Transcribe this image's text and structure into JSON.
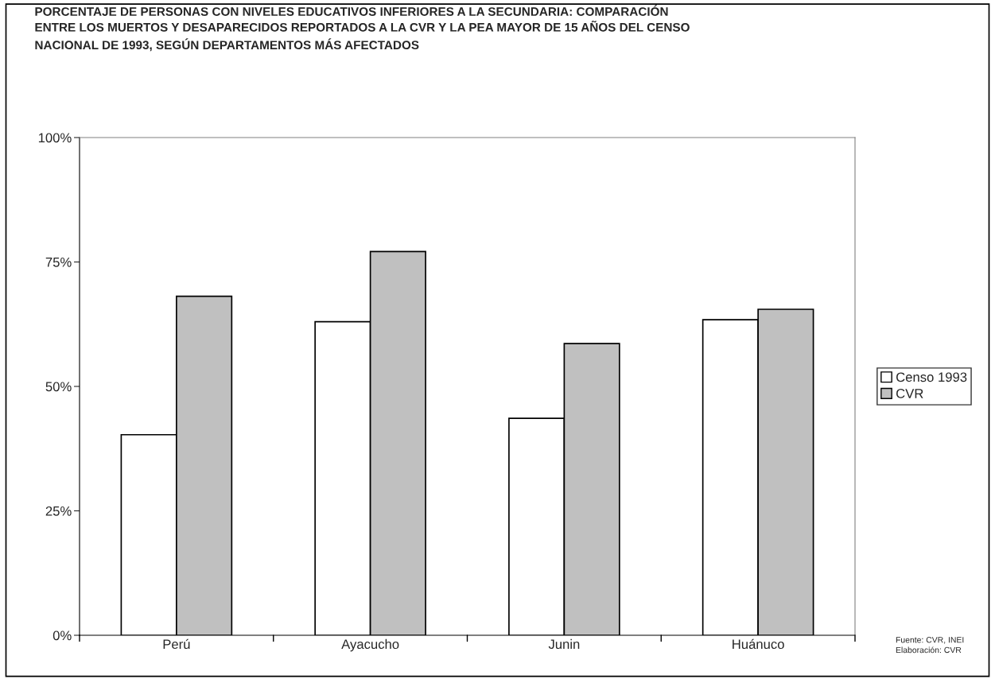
{
  "chart_data": {
    "type": "bar",
    "title": "PORCENTAJE DE PERSONAS CON NIVELES EDUCATIVOS INFERIORES A LA SECUNDARIA: COMPARACIÓN\nENTRE LOS MUERTOS Y DESAPARECIDOS REPORTADOS A LA CVR Y LA PEA MAYOR DE 15 AÑOS DEL CENSO\nNACIONAL DE 1993, SEGÚN DEPARTAMENTOS MÁS AFECTADOS",
    "categories": [
      "Perú",
      "Ayacucho",
      "Junin",
      "Huánuco"
    ],
    "series": [
      {
        "name": "Censo 1993",
        "color": "#ffffff",
        "values": [
          40.3,
          63.0,
          43.6,
          63.4
        ]
      },
      {
        "name": "CVR",
        "color": "#c0c0c0",
        "values": [
          68.1,
          77.1,
          58.6,
          65.5
        ]
      }
    ],
    "ylim": [
      0,
      100
    ],
    "yticks": [
      {
        "value": 0,
        "label": "0%"
      },
      {
        "value": 25,
        "label": "25%"
      },
      {
        "value": 50,
        "label": "50%"
      },
      {
        "value": 75,
        "label": "75%"
      },
      {
        "value": 100,
        "label": "100%"
      }
    ],
    "grid": false,
    "legend": "right",
    "annotations": [
      "Fuente: CVR, INEI\nElaboración: CVR"
    ]
  }
}
